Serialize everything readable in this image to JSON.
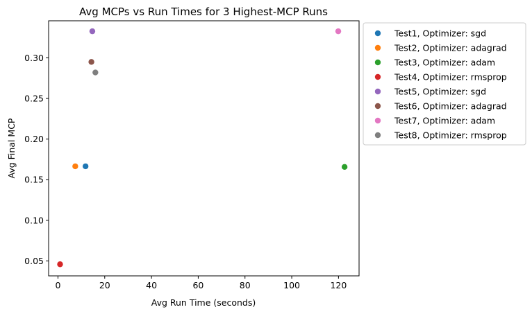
{
  "chart_data": {
    "type": "scatter",
    "title": "Avg MCPs vs Run Times for 3 Highest-MCP Runs",
    "xlabel": "Avg Run Time (seconds)",
    "ylabel": "Avg Final MCP",
    "xlim": [
      -4.0,
      128.8
    ],
    "ylim": [
      0.0316,
      0.3456
    ],
    "xticks": [
      0,
      20,
      40,
      60,
      80,
      100,
      120
    ],
    "yticks": [
      0.05,
      0.1,
      0.15,
      0.2,
      0.25,
      0.3
    ],
    "ytick_labels": [
      "0.05",
      "0.10",
      "0.15",
      "0.20",
      "0.25",
      "0.30"
    ],
    "grid": false,
    "legend_position": "outside-top-right",
    "series": [
      {
        "name": "Test1, Optimizer: sgd",
        "color": "#1f77b4",
        "points": [
          [
            11.8,
            0.1665
          ]
        ]
      },
      {
        "name": "Test2, Optimizer: adagrad",
        "color": "#ff7f0e",
        "points": [
          [
            7.4,
            0.1665
          ]
        ]
      },
      {
        "name": "Test3, Optimizer: adam",
        "color": "#2ca02c",
        "points": [
          [
            122.6,
            0.1657
          ]
        ]
      },
      {
        "name": "Test4, Optimizer: rmsprop",
        "color": "#d62728",
        "points": [
          [
            0.9,
            0.0459
          ]
        ]
      },
      {
        "name": "Test5, Optimizer: sgd",
        "color": "#9467bd",
        "points": [
          [
            14.7,
            0.3327
          ]
        ]
      },
      {
        "name": "Test6, Optimizer: adagrad",
        "color": "#8c564b",
        "points": [
          [
            14.3,
            0.295
          ]
        ]
      },
      {
        "name": "Test7, Optimizer: adam",
        "color": "#e377c2",
        "points": [
          [
            119.9,
            0.3327
          ]
        ]
      },
      {
        "name": "Test8, Optimizer: rmsprop",
        "color": "#7f7f7f",
        "points": [
          [
            16.0,
            0.282
          ]
        ]
      }
    ]
  }
}
